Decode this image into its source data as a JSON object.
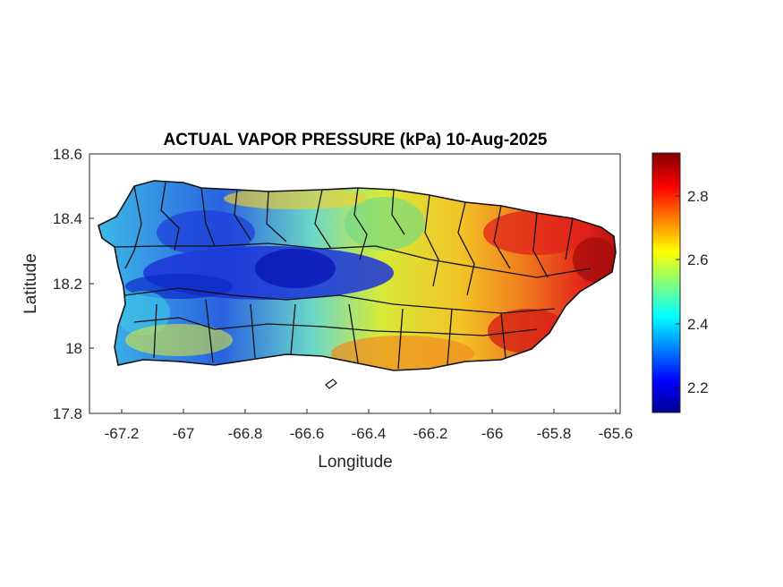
{
  "figure": {
    "title": "ACTUAL VAPOR PRESSURE (kPa) 10-Aug-2025",
    "xlabel": "Longitude",
    "ylabel": "Latitude",
    "xlim": [
      -67.3,
      -65.6
    ],
    "ylim": [
      17.8,
      18.6
    ],
    "xticks": [
      "-67.2",
      "-67",
      "-66.8",
      "-66.6",
      "-66.4",
      "-66.2",
      "-66",
      "-65.8",
      "-65.6"
    ],
    "yticks": [
      "18.6",
      "18.4",
      "18.2",
      "18",
      "17.8"
    ],
    "colorbar": {
      "colormap": "jet",
      "range": [
        2.12,
        2.93
      ],
      "ticks": [
        "2.8",
        "2.6",
        "2.4",
        "2.2"
      ],
      "colors": [
        "#00008f",
        "#0000ff",
        "#00ffff",
        "#ffff00",
        "#ff0000",
        "#800000"
      ]
    },
    "region": "Puerto Rico municipality boundaries"
  }
}
